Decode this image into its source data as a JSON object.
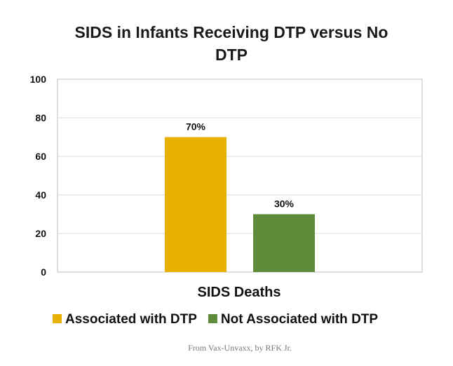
{
  "chart_data": {
    "type": "bar",
    "title_lines": [
      "SIDS in Infants Receiving DTP versus No",
      "DTP"
    ],
    "categories": [
      "SIDS Deaths"
    ],
    "xlabel": "SIDS Deaths",
    "ylabel": "",
    "ylim": [
      0,
      100
    ],
    "yticks": [
      0,
      20,
      40,
      60,
      80,
      100
    ],
    "grid": true,
    "legend_position": "bottom",
    "series": [
      {
        "name": "Associated with DTP",
        "values": [
          70
        ],
        "label": "70%",
        "color": "#E8B100"
      },
      {
        "name": "Not Associated with DTP",
        "values": [
          30
        ],
        "label": "30%",
        "color": "#5E8C3A"
      }
    ]
  },
  "caption": "From Vax-Unvaxx, by RFK Jr."
}
